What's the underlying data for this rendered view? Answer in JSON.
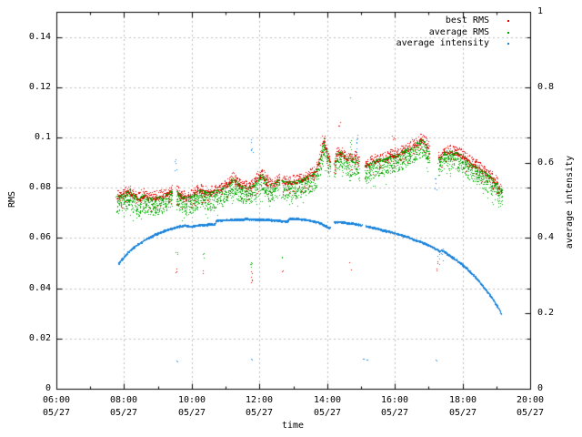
{
  "chart_data": {
    "type": "scatter",
    "title": "",
    "xlabel": "time",
    "ylabel": "RMS",
    "y2label": "average intensity",
    "grid": "dashed, on x major (2h) and left-axis major (0.02) lines",
    "colors": {
      "best_rms": "#e60000",
      "average_rms": "#00aa00",
      "average_intensity": "#1b84dc",
      "grid": "#bcbcbc",
      "frame": "#000000"
    },
    "legend": [
      {
        "label": "best RMS",
        "series": "best_rms"
      },
      {
        "label": "average RMS",
        "series": "average_rms"
      },
      {
        "label": "average intensity",
        "series": "average_intensity"
      }
    ],
    "x_axis": {
      "min_hour": 6,
      "max_hour": 20,
      "major_step_h": 2,
      "minor_step_h": 1,
      "date": "05/27",
      "tick_labels": [
        "06:00",
        "08:00",
        "10:00",
        "12:00",
        "14:00",
        "16:00",
        "18:00",
        "20:00"
      ]
    },
    "y_axis": {
      "min": 0,
      "max": 0.15,
      "major_step": 0.02,
      "tick_labels": [
        "0",
        "0.02",
        "0.04",
        "0.06",
        "0.08",
        "0.1",
        "0.12",
        "0.14"
      ]
    },
    "y2_axis": {
      "min": 0,
      "max": 1,
      "major_step": 0.2,
      "tick_labels": [
        "0",
        "0.2",
        "0.4",
        "0.6",
        "0.8",
        "1"
      ]
    },
    "series": {
      "rms_band": {
        "description": "best RMS (red) forms upper fringe over average RMS (green) dense dot band",
        "start_hour": 7.78,
        "end_hour": 19.16,
        "gaps": [
          [
            9.42,
            9.53
          ],
          [
            12.58,
            12.66
          ],
          [
            14.08,
            14.2
          ],
          [
            14.95,
            15.1
          ],
          [
            17.02,
            17.28
          ]
        ],
        "center_points": [
          [
            7.78,
            0.0748
          ],
          [
            7.9,
            0.0752
          ],
          [
            8.05,
            0.0762
          ],
          [
            8.15,
            0.0772
          ],
          [
            8.3,
            0.0748
          ],
          [
            8.45,
            0.0738
          ],
          [
            8.55,
            0.0756
          ],
          [
            8.7,
            0.0742
          ],
          [
            8.85,
            0.0742
          ],
          [
            9.0,
            0.0746
          ],
          [
            9.15,
            0.0752
          ],
          [
            9.3,
            0.0762
          ],
          [
            9.42,
            0.0772
          ],
          [
            9.53,
            0.0768
          ],
          [
            9.65,
            0.0758
          ],
          [
            9.8,
            0.0742
          ],
          [
            9.95,
            0.0748
          ],
          [
            10.1,
            0.0762
          ],
          [
            10.25,
            0.0772
          ],
          [
            10.4,
            0.0766
          ],
          [
            10.55,
            0.0762
          ],
          [
            10.7,
            0.0772
          ],
          [
            10.85,
            0.0776
          ],
          [
            11.0,
            0.0792
          ],
          [
            11.15,
            0.0812
          ],
          [
            11.25,
            0.0822
          ],
          [
            11.35,
            0.08
          ],
          [
            11.5,
            0.079
          ],
          [
            11.65,
            0.0786
          ],
          [
            11.8,
            0.0792
          ],
          [
            11.95,
            0.0822
          ],
          [
            12.05,
            0.0836
          ],
          [
            12.15,
            0.082
          ],
          [
            12.3,
            0.0796
          ],
          [
            12.45,
            0.08
          ],
          [
            12.55,
            0.0816
          ],
          [
            12.66,
            0.0812
          ],
          [
            12.8,
            0.0806
          ],
          [
            12.95,
            0.0806
          ],
          [
            13.1,
            0.081
          ],
          [
            13.25,
            0.0816
          ],
          [
            13.4,
            0.0826
          ],
          [
            13.55,
            0.0836
          ],
          [
            13.7,
            0.086
          ],
          [
            13.82,
            0.092
          ],
          [
            13.9,
            0.0975
          ],
          [
            13.97,
            0.094
          ],
          [
            14.08,
            0.087
          ],
          [
            14.2,
            0.0878
          ],
          [
            14.3,
            0.0925
          ],
          [
            14.42,
            0.0925
          ],
          [
            14.55,
            0.09
          ],
          [
            14.7,
            0.09
          ],
          [
            14.82,
            0.0906
          ],
          [
            14.95,
            0.088
          ],
          [
            15.1,
            0.0872
          ],
          [
            15.3,
            0.0884
          ],
          [
            15.5,
            0.0896
          ],
          [
            15.7,
            0.0896
          ],
          [
            15.9,
            0.0912
          ],
          [
            16.1,
            0.092
          ],
          [
            16.3,
            0.0932
          ],
          [
            16.5,
            0.0946
          ],
          [
            16.65,
            0.096
          ],
          [
            16.8,
            0.0974
          ],
          [
            16.9,
            0.0962
          ],
          [
            17.02,
            0.093
          ],
          [
            17.1,
            0.088
          ],
          [
            17.2,
            0.0872
          ],
          [
            17.3,
            0.0902
          ],
          [
            17.45,
            0.0924
          ],
          [
            17.6,
            0.093
          ],
          [
            17.75,
            0.0926
          ],
          [
            17.9,
            0.0916
          ],
          [
            18.05,
            0.0906
          ],
          [
            18.2,
            0.0886
          ],
          [
            18.35,
            0.0872
          ],
          [
            18.5,
            0.0858
          ],
          [
            18.65,
            0.0844
          ],
          [
            18.8,
            0.083
          ],
          [
            18.95,
            0.081
          ],
          [
            19.05,
            0.0792
          ],
          [
            19.16,
            0.0772
          ]
        ]
      },
      "intensity_curve": {
        "description": "average intensity (blue), smooth arc read on right axis",
        "gaps": [
          [
            14.08,
            14.2
          ],
          [
            15.03,
            15.13
          ]
        ],
        "points": [
          [
            7.82,
            0.333
          ],
          [
            7.95,
            0.347
          ],
          [
            8.1,
            0.362
          ],
          [
            8.25,
            0.374
          ],
          [
            8.4,
            0.384
          ],
          [
            8.55,
            0.393
          ],
          [
            8.7,
            0.401
          ],
          [
            8.85,
            0.408
          ],
          [
            9.0,
            0.414
          ],
          [
            9.2,
            0.421
          ],
          [
            9.4,
            0.427
          ],
          [
            9.6,
            0.432
          ],
          [
            9.8,
            0.435
          ],
          [
            10.0,
            0.432
          ],
          [
            10.3,
            0.436
          ],
          [
            10.55,
            0.438
          ],
          [
            10.68,
            0.438
          ],
          [
            10.72,
            0.449
          ],
          [
            11.0,
            0.449
          ],
          [
            11.3,
            0.45
          ],
          [
            11.6,
            0.452
          ],
          [
            11.9,
            0.451
          ],
          [
            12.2,
            0.45
          ],
          [
            12.5,
            0.448
          ],
          [
            12.82,
            0.445
          ],
          [
            12.88,
            0.453
          ],
          [
            13.15,
            0.452
          ],
          [
            13.4,
            0.449
          ],
          [
            13.6,
            0.446
          ],
          [
            13.8,
            0.441
          ],
          [
            13.95,
            0.434
          ],
          [
            14.06,
            0.428
          ],
          [
            14.22,
            0.444
          ],
          [
            14.4,
            0.4435
          ],
          [
            14.6,
            0.441
          ],
          [
            14.8,
            0.439
          ],
          [
            15.0,
            0.436
          ],
          [
            15.2,
            0.432
          ],
          [
            15.4,
            0.428
          ],
          [
            15.6,
            0.423
          ],
          [
            15.8,
            0.419
          ],
          [
            16.0,
            0.414
          ],
          [
            16.2,
            0.409
          ],
          [
            16.4,
            0.403
          ],
          [
            16.6,
            0.396
          ],
          [
            16.8,
            0.39
          ],
          [
            17.0,
            0.382
          ],
          [
            17.15,
            0.375
          ],
          [
            17.3,
            0.368
          ],
          [
            17.32,
            0.363
          ],
          [
            17.36,
            0.37
          ],
          [
            17.5,
            0.362
          ],
          [
            17.7,
            0.35
          ],
          [
            17.9,
            0.337
          ],
          [
            18.1,
            0.322
          ],
          [
            18.3,
            0.305
          ],
          [
            18.5,
            0.285
          ],
          [
            18.7,
            0.262
          ],
          [
            18.9,
            0.238
          ],
          [
            19.05,
            0.216
          ],
          [
            19.15,
            0.199
          ]
        ]
      },
      "stray_points": [
        {
          "series": "average_intensity",
          "t": 9.52,
          "axis": 2,
          "v": [
            0.578,
            0.612
          ],
          "n": 6
        },
        {
          "series": "average_intensity",
          "t": 11.77,
          "axis": 2,
          "v": [
            0.628,
            0.672
          ],
          "n": 6
        },
        {
          "series": "average_intensity",
          "t": 14.88,
          "axis": 2,
          "v": [
            0.618,
            0.676
          ],
          "n": 7
        },
        {
          "series": "average_intensity",
          "t": 17.2,
          "axis": 2,
          "v": [
            0.528,
            0.568
          ],
          "n": 5
        },
        {
          "series": "average_intensity",
          "t": 17.25,
          "t2": 17.45,
          "axis": 2,
          "v": [
            0.328,
            0.372
          ],
          "n": 12
        },
        {
          "series": "average_intensity",
          "t": 9.55,
          "axis": 2,
          "v": [
            0.073,
            0.081
          ],
          "n": 2
        },
        {
          "series": "average_intensity",
          "t": 11.76,
          "axis": 2,
          "v": [
            0.073,
            0.081
          ],
          "n": 2
        },
        {
          "series": "average_intensity",
          "t": 15.05,
          "axis": 2,
          "v": [
            0.073,
            0.081
          ],
          "n": 2
        },
        {
          "series": "average_intensity",
          "t": 15.18,
          "axis": 2,
          "v": [
            0.073,
            0.081
          ],
          "n": 2
        },
        {
          "series": "average_intensity",
          "t": 17.22,
          "axis": 2,
          "v": [
            0.073,
            0.081
          ],
          "n": 2
        },
        {
          "series": "average_rms",
          "t": 9.55,
          "axis": 1,
          "v": [
            0.0528,
            0.0546
          ],
          "n": 3
        },
        {
          "series": "best_rms",
          "t": 9.55,
          "axis": 1,
          "v": [
            0.0462,
            0.0482
          ],
          "n": 3
        },
        {
          "series": "average_rms",
          "t": 10.33,
          "axis": 1,
          "v": [
            0.0522,
            0.0542
          ],
          "n": 3
        },
        {
          "series": "best_rms",
          "t": 10.33,
          "axis": 1,
          "v": [
            0.0455,
            0.0472
          ],
          "n": 3
        },
        {
          "series": "average_rms",
          "t": 11.75,
          "axis": 1,
          "v": [
            0.0478,
            0.0514
          ],
          "n": 5
        },
        {
          "series": "best_rms",
          "t": 11.76,
          "axis": 1,
          "v": [
            0.0424,
            0.0475
          ],
          "n": 7
        },
        {
          "series": "average_rms",
          "t": 12.67,
          "axis": 1,
          "v": [
            0.0518,
            0.0528
          ],
          "n": 2
        },
        {
          "series": "best_rms",
          "t": 12.67,
          "axis": 1,
          "v": [
            0.0462,
            0.0472
          ],
          "n": 2
        },
        {
          "series": "average_rms",
          "t": 14.68,
          "axis": 1,
          "v": [
            0.082,
            0.1
          ],
          "n": 12
        },
        {
          "series": "average_rms",
          "t": 14.68,
          "axis": 1,
          "v": [
            0.116,
            0.1168
          ],
          "n": 1
        },
        {
          "series": "best_rms",
          "t": 14.35,
          "axis": 1,
          "v": [
            0.1035,
            0.1065
          ],
          "n": 3
        },
        {
          "series": "best_rms",
          "t": 14.68,
          "axis": 1,
          "v": [
            0.0455,
            0.0505
          ],
          "n": 2
        },
        {
          "series": "best_rms",
          "t": 15.9,
          "t2": 16.0,
          "axis": 1,
          "v": [
            0.0992,
            0.1012
          ],
          "n": 4
        },
        {
          "series": "best_rms",
          "t": 17.25,
          "axis": 1,
          "v": [
            0.046,
            0.0515
          ],
          "n": 4
        }
      ]
    }
  }
}
